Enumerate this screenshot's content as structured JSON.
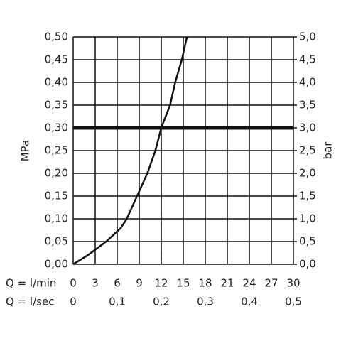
{
  "chart_data": {
    "type": "line",
    "ylabel": "MPa",
    "y2label": "bar",
    "xlabel": "Q = l/min",
    "x2label": "Q = l/sec",
    "x": [
      0,
      2,
      4.5,
      6.5,
      7.3,
      8.7,
      10.1,
      11.2,
      12,
      13.2,
      13.9,
      14.8,
      15.5
    ],
    "series": [
      {
        "color": "#111111",
        "values": [
          0,
          0.02,
          0.05,
          0.08,
          0.1,
          0.15,
          0.2,
          0.25,
          0.3,
          0.35,
          0.4,
          0.45,
          0.5
        ]
      }
    ],
    "xlim": [
      0,
      30
    ],
    "xticks": [
      0,
      3,
      6,
      9,
      12,
      15,
      18,
      21,
      24,
      27,
      30
    ],
    "x2lim": [
      0,
      0.5
    ],
    "x2ticks": [
      0,
      {
        "value": 0.1,
        "label": "0,1"
      },
      {
        "value": 0.2,
        "label": "0,2"
      },
      {
        "value": 0.3,
        "label": "0,3"
      },
      {
        "value": 0.4,
        "label": "0,4"
      },
      {
        "value": 0.5,
        "label": "0,5"
      }
    ],
    "ylim": [
      0,
      0.5
    ],
    "yticks": [
      {
        "value": 0,
        "label": "0,00"
      },
      {
        "value": 0.05,
        "label": "0,05"
      },
      {
        "value": 0.1,
        "label": "0,10"
      },
      {
        "value": 0.15,
        "label": "0,15"
      },
      {
        "value": 0.2,
        "label": "0,20"
      },
      {
        "value": 0.25,
        "label": "0,25"
      },
      {
        "value": 0.3,
        "label": "0,30"
      },
      {
        "value": 0.35,
        "label": "0,35"
      },
      {
        "value": 0.4,
        "label": "0,40"
      },
      {
        "value": 0.45,
        "label": "0,45"
      },
      {
        "value": 0.5,
        "label": "0,50"
      }
    ],
    "y2lim": [
      0,
      5
    ],
    "y2ticks": [
      {
        "value": 0,
        "label": "0,0"
      },
      {
        "value": 0.5,
        "label": "0,5"
      },
      {
        "value": 1,
        "label": "1,0"
      },
      {
        "value": 1.5,
        "label": "1,5"
      },
      {
        "value": 2,
        "label": "2,0"
      },
      {
        "value": 2.5,
        "label": "2,5"
      },
      {
        "value": 3,
        "label": "3,0"
      },
      {
        "value": 3.5,
        "label": "3,5"
      },
      {
        "value": 4,
        "label": "4,0"
      },
      {
        "value": 4.5,
        "label": "4,5"
      },
      {
        "value": 5,
        "label": "5,0"
      }
    ],
    "hline": 0.3,
    "vline": 12,
    "grid": true
  }
}
